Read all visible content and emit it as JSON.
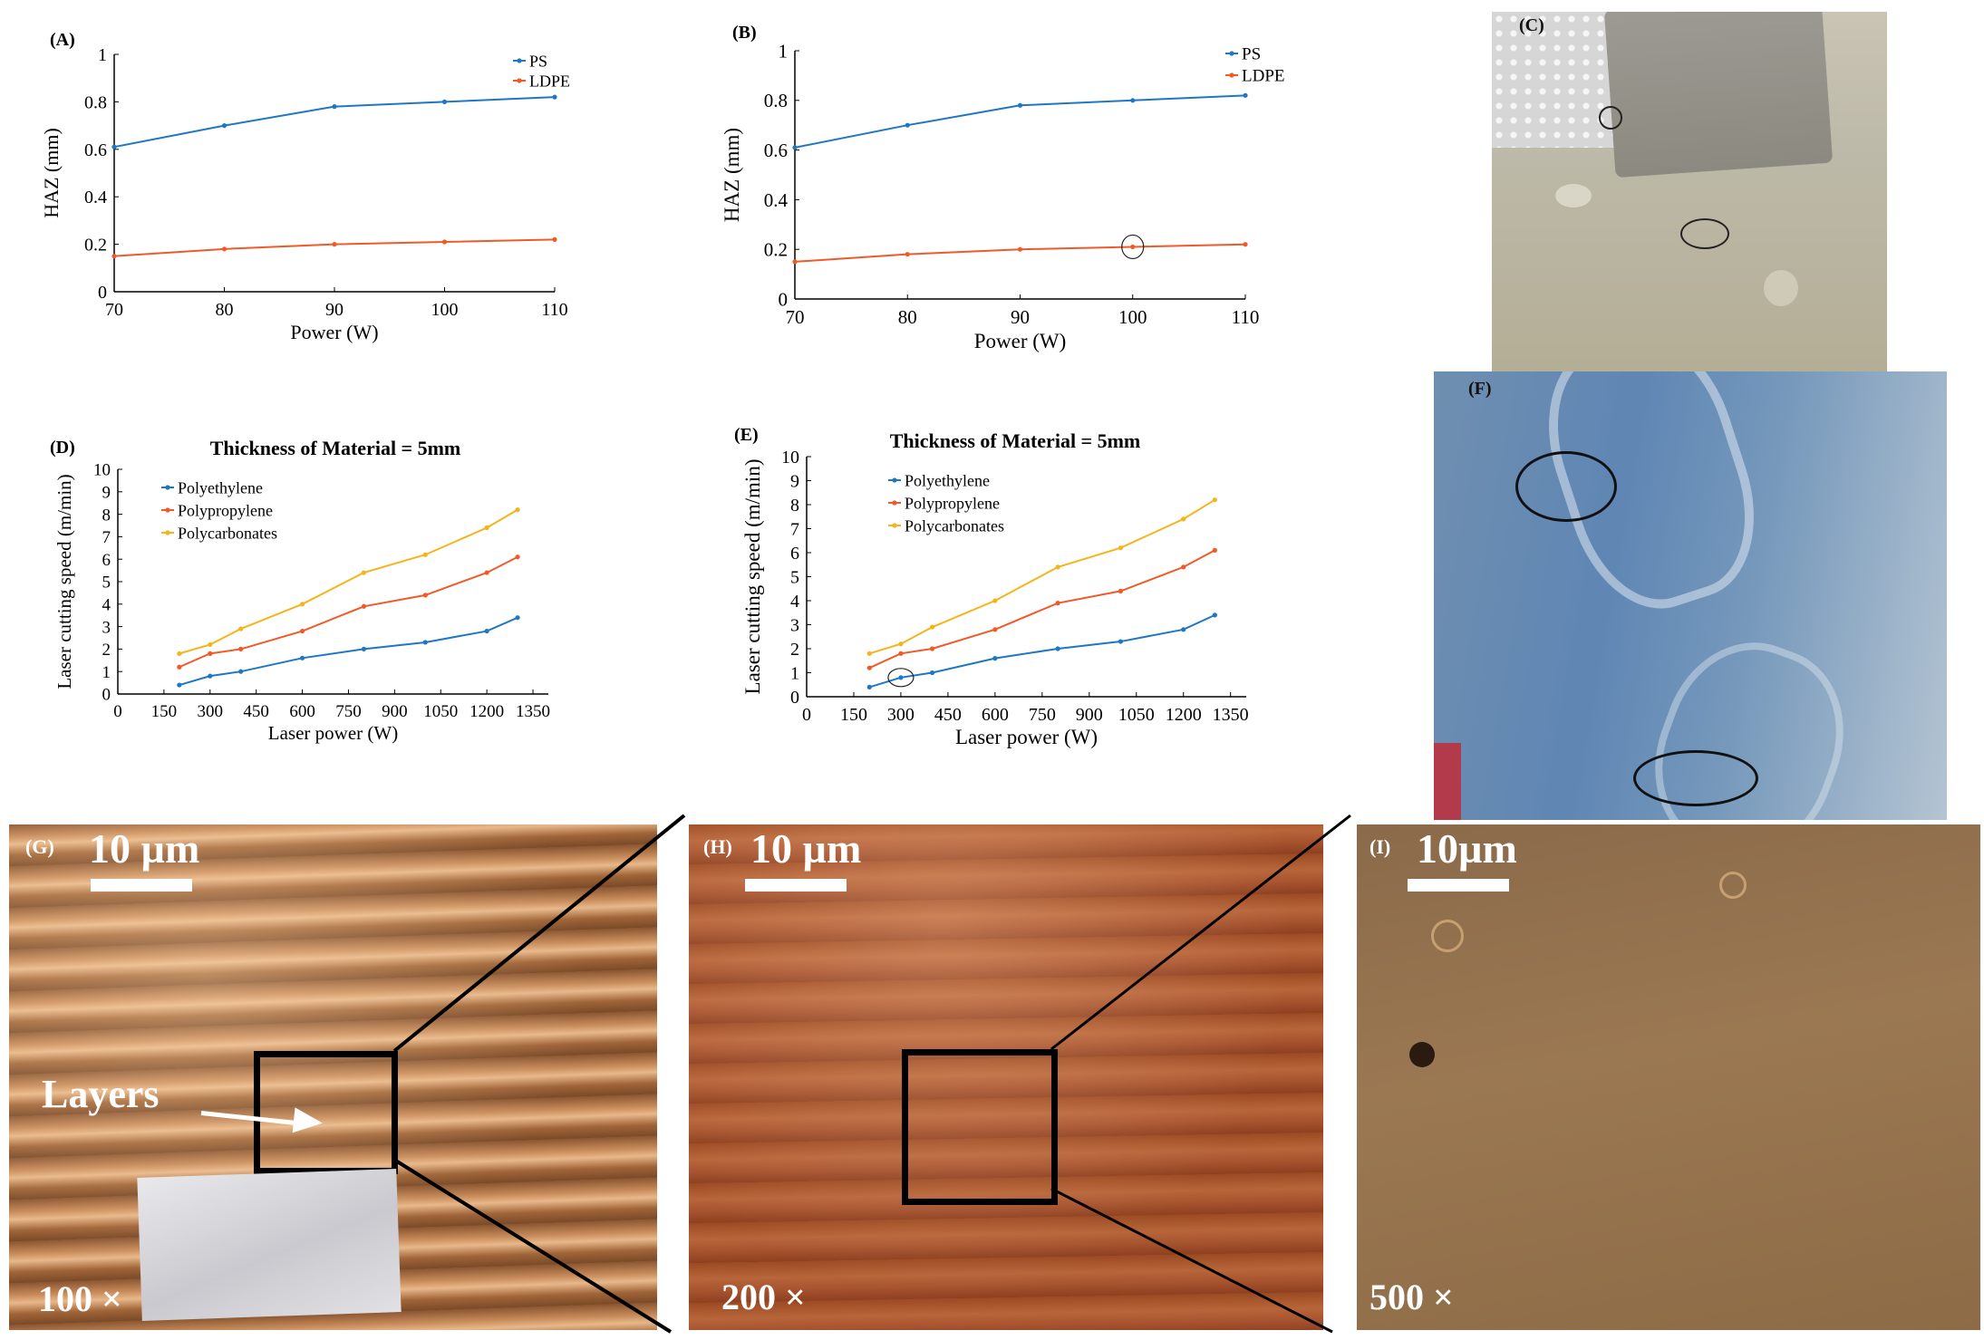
{
  "chart_data": [
    {
      "type": "line",
      "panel": "(A)",
      "xlabel": "Power (W)",
      "ylabel": "HAZ (mm)",
      "xlim": [
        70,
        110
      ],
      "ylim": [
        0,
        1
      ],
      "xticks": [
        70,
        80,
        90,
        100,
        110
      ],
      "yticks": [
        0,
        0.2,
        0.4,
        0.6,
        0.8,
        1
      ],
      "legend_position": "top-right",
      "x": [
        70,
        80,
        90,
        100,
        110
      ],
      "series": [
        {
          "name": "PS",
          "color": "#1f77c4",
          "values": [
            0.61,
            0.7,
            0.78,
            0.8,
            0.82
          ]
        },
        {
          "name": "LDPE",
          "color": "#f05a28",
          "values": [
            0.15,
            0.18,
            0.2,
            0.21,
            0.22
          ]
        }
      ]
    },
    {
      "type": "line",
      "panel": "(B)",
      "xlabel": "Power (W)",
      "ylabel": "HAZ (mm)",
      "xlim": [
        70,
        110
      ],
      "ylim": [
        0,
        1
      ],
      "xticks": [
        70,
        80,
        90,
        100,
        110
      ],
      "yticks": [
        0,
        0.2,
        0.4,
        0.6,
        0.8,
        1
      ],
      "legend_position": "top-right",
      "x": [
        70,
        80,
        90,
        100,
        110
      ],
      "series": [
        {
          "name": "PS",
          "color": "#1f77c4",
          "values": [
            0.61,
            0.7,
            0.78,
            0.8,
            0.82
          ]
        },
        {
          "name": "LDPE",
          "color": "#f05a28",
          "values": [
            0.15,
            0.18,
            0.2,
            0.21,
            0.22
          ]
        }
      ],
      "circled_point": {
        "x": 100,
        "y": 0.21
      }
    },
    {
      "type": "line",
      "panel": "(D)",
      "title": "Thickness of Material = 5mm",
      "xlabel": "Laser power (W)",
      "ylabel": "Laser cutting speed (m/min)",
      "xlim": [
        0,
        1400
      ],
      "ylim": [
        0,
        10
      ],
      "xticks": [
        0,
        150,
        300,
        450,
        600,
        750,
        900,
        1050,
        1200,
        1350
      ],
      "yticks": [
        0,
        1,
        2,
        3,
        4,
        5,
        6,
        7,
        8,
        9,
        10
      ],
      "legend_position": "top-left",
      "x": [
        200,
        300,
        400,
        600,
        800,
        1000,
        1200,
        1300
      ],
      "series": [
        {
          "name": "Polyethylene",
          "color": "#1f77c4",
          "values": [
            0.4,
            0.8,
            1.0,
            1.6,
            2.0,
            2.3,
            2.8,
            3.4
          ]
        },
        {
          "name": "Polypropylene",
          "color": "#f05a28",
          "values": [
            1.2,
            1.8,
            2.0,
            2.8,
            3.9,
            4.4,
            5.4,
            6.1
          ]
        },
        {
          "name": "Polycarbonates",
          "color": "#f5b41a",
          "values": [
            1.8,
            2.2,
            2.9,
            4.0,
            5.4,
            6.2,
            7.4,
            8.2
          ]
        }
      ]
    },
    {
      "type": "line",
      "panel": "(E)",
      "title": "Thickness of Material = 5mm",
      "xlabel": "Laser power (W)",
      "ylabel": "Laser cutting speed (m/min)",
      "xlim": [
        0,
        1400
      ],
      "ylim": [
        0,
        10
      ],
      "xticks": [
        0,
        150,
        300,
        450,
        600,
        750,
        900,
        1050,
        1200,
        1350
      ],
      "yticks": [
        0,
        1,
        2,
        3,
        4,
        5,
        6,
        7,
        8,
        9,
        10
      ],
      "legend_position": "top-left",
      "x": [
        200,
        300,
        400,
        600,
        800,
        1000,
        1200,
        1300
      ],
      "series": [
        {
          "name": "Polyethylene",
          "color": "#1f77c4",
          "values": [
            0.4,
            0.8,
            1.0,
            1.6,
            2.0,
            2.3,
            2.8,
            3.4
          ]
        },
        {
          "name": "Polypropylene",
          "color": "#f05a28",
          "values": [
            1.2,
            1.8,
            2.0,
            2.8,
            3.9,
            4.4,
            5.4,
            6.1
          ]
        },
        {
          "name": "Polycarbonates",
          "color": "#f5b41a",
          "values": [
            1.8,
            2.2,
            2.9,
            4.0,
            5.4,
            6.2,
            7.4,
            8.2
          ]
        }
      ],
      "circled_point": {
        "x": 300,
        "y": 0.8
      }
    }
  ],
  "photos": {
    "c_label": "(C)",
    "f_label": "(F)",
    "g": {
      "label": "(G)",
      "scale": "10 µm",
      "magnification": "100 ×",
      "annotation": "Layers"
    },
    "h": {
      "label": "(H)",
      "scale": "10 µm",
      "magnification": "200 ×"
    },
    "i": {
      "label": "(I)",
      "scale": "10µm",
      "magnification": "500 ×"
    }
  }
}
